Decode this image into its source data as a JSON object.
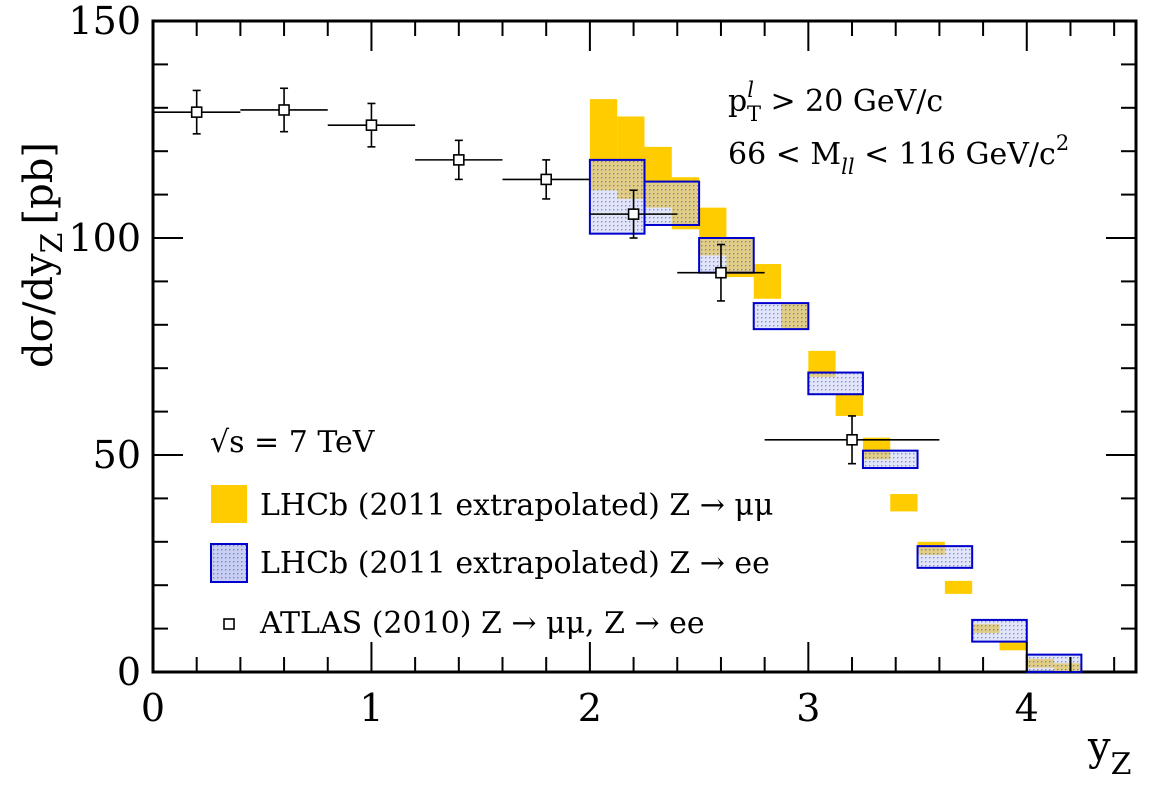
{
  "chart_data": {
    "type": "scatter",
    "xlabel": "y",
    "xlabel_sub": "Z",
    "ylabel": "dσ/dy",
    "ylabel_sub": "Z",
    "ylabel_unit": "[pb]",
    "xlim": [
      0,
      4.5
    ],
    "ylim": [
      0,
      150
    ],
    "x_ticks": [
      0,
      1,
      2,
      3,
      4
    ],
    "x_tick_labels": [
      "0",
      "1",
      "2",
      "3",
      "4"
    ],
    "y_ticks": [
      0,
      50,
      100,
      150
    ],
    "y_tick_labels": [
      "0",
      "50",
      "100",
      "150"
    ],
    "grid": false,
    "legend_position": "bottom-left",
    "annotations": {
      "energy": {
        "prefix": "√s",
        "text": " = 7 TeV"
      },
      "pt_cut": {
        "main": "p",
        "sup": "l",
        "sub": "T",
        "rest": " > 20 GeV/c"
      },
      "mass_cut": {
        "prefix": "66 < M",
        "sub": "ll",
        "rest": " < 116 GeV/c",
        "sup": "2"
      }
    },
    "series": [
      {
        "name": "LHCb (2011 extrapolated) Z → μμ",
        "style": "band",
        "color": "#ffcc00",
        "bins": [
          {
            "x0": 2.0,
            "x1": 2.125,
            "lo": 111,
            "hi": 132
          },
          {
            "x0": 2.125,
            "x1": 2.25,
            "lo": 109,
            "hi": 128
          },
          {
            "x0": 2.25,
            "x1": 2.375,
            "lo": 107,
            "hi": 121
          },
          {
            "x0": 2.375,
            "x1": 2.5,
            "lo": 102,
            "hi": 114
          },
          {
            "x0": 2.5,
            "x1": 2.625,
            "lo": 96,
            "hi": 107
          },
          {
            "x0": 2.625,
            "x1": 2.75,
            "lo": 91,
            "hi": 100
          },
          {
            "x0": 2.75,
            "x1": 2.875,
            "lo": 86,
            "hi": 94
          },
          {
            "x0": 2.875,
            "x1": 3.0,
            "lo": 79,
            "hi": 85
          },
          {
            "x0": 3.0,
            "x1": 3.125,
            "lo": 68,
            "hi": 74
          },
          {
            "x0": 3.125,
            "x1": 3.25,
            "lo": 59,
            "hi": 64
          },
          {
            "x0": 3.25,
            "x1": 3.375,
            "lo": 49,
            "hi": 54
          },
          {
            "x0": 3.375,
            "x1": 3.5,
            "lo": 37,
            "hi": 41
          },
          {
            "x0": 3.5,
            "x1": 3.625,
            "lo": 27,
            "hi": 30
          },
          {
            "x0": 3.625,
            "x1": 3.75,
            "lo": 18,
            "hi": 21
          },
          {
            "x0": 3.75,
            "x1": 3.875,
            "lo": 9,
            "hi": 11
          },
          {
            "x0": 3.875,
            "x1": 4.0,
            "lo": 5,
            "hi": 7
          },
          {
            "x0": 4.0,
            "x1": 4.125,
            "lo": 1,
            "hi": 3
          },
          {
            "x0": 4.125,
            "x1": 4.25,
            "lo": 0,
            "hi": 2
          }
        ]
      },
      {
        "name": "LHCb (2011 extrapolated) Z → ee",
        "style": "box",
        "color": "#0000cc",
        "fill": "#c8cff0",
        "bins": [
          {
            "x0": 2.0,
            "x1": 2.25,
            "lo": 101,
            "hi": 118
          },
          {
            "x0": 2.25,
            "x1": 2.5,
            "lo": 103,
            "hi": 113
          },
          {
            "x0": 2.5,
            "x1": 2.75,
            "lo": 92,
            "hi": 100
          },
          {
            "x0": 2.75,
            "x1": 3.0,
            "lo": 79,
            "hi": 85
          },
          {
            "x0": 3.0,
            "x1": 3.25,
            "lo": 64,
            "hi": 69
          },
          {
            "x0": 3.25,
            "x1": 3.5,
            "lo": 47,
            "hi": 51
          },
          {
            "x0": 3.5,
            "x1": 3.75,
            "lo": 24,
            "hi": 29
          },
          {
            "x0": 3.75,
            "x1": 4.0,
            "lo": 7,
            "hi": 12
          },
          {
            "x0": 4.0,
            "x1": 4.25,
            "lo": 0,
            "hi": 4
          }
        ]
      },
      {
        "name": "ATLAS (2010) Z → μμ, Z → ee",
        "style": "points",
        "color": "#000000",
        "points": [
          {
            "x": 0.2,
            "xerr": 0.2,
            "y": 129,
            "yerr": 5
          },
          {
            "x": 0.6,
            "xerr": 0.2,
            "y": 129.5,
            "yerr": 5
          },
          {
            "x": 1.0,
            "xerr": 0.2,
            "y": 126,
            "yerr": 5
          },
          {
            "x": 1.4,
            "xerr": 0.2,
            "y": 118,
            "yerr": 4.5
          },
          {
            "x": 1.8,
            "xerr": 0.2,
            "y": 113.5,
            "yerr": 4.5
          },
          {
            "x": 2.2,
            "xerr": 0.2,
            "y": 105.5,
            "yerr": 5.5
          },
          {
            "x": 2.6,
            "xerr": 0.2,
            "y": 92,
            "yerr": 6.5
          },
          {
            "x": 3.2,
            "xerr": 0.4,
            "y": 53.5,
            "yerr": 5.5
          }
        ]
      }
    ]
  }
}
